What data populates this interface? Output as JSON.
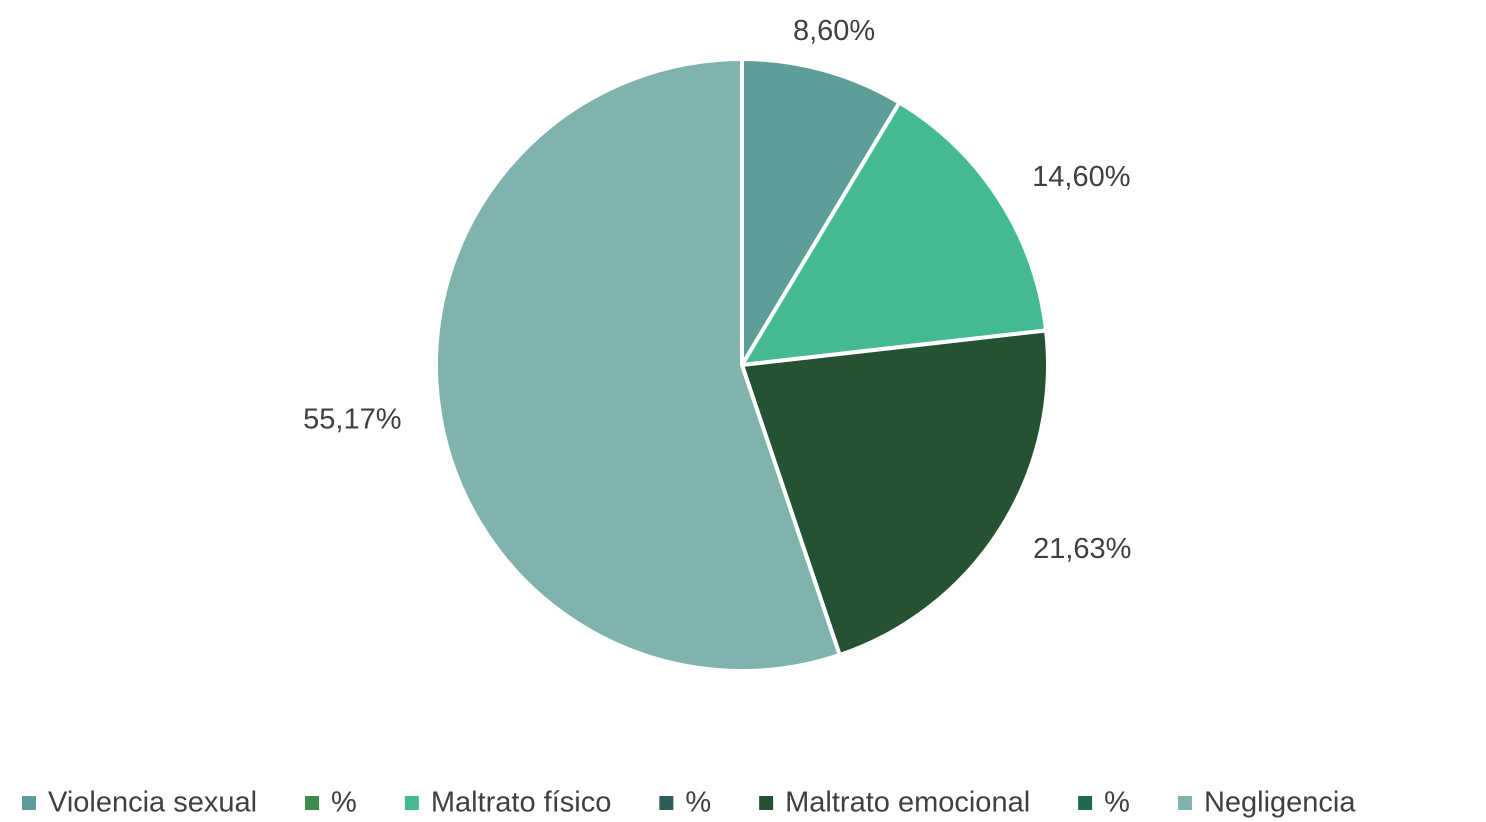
{
  "chart_data": {
    "type": "pie",
    "categories": [
      "Violencia sexual",
      "%",
      "Maltrato físico",
      "%",
      "Maltrato emocional",
      "%",
      "Negligencia"
    ],
    "values": [
      8.6,
      null,
      14.6,
      null,
      21.63,
      null,
      55.17
    ],
    "value_labels": [
      "8,60%",
      null,
      "14,60%",
      null,
      "21,63%",
      null,
      "55,17%"
    ],
    "colors": [
      "#5f9e98",
      "#3d8b4c",
      "#43b994",
      "#2f5d5a",
      "#245233",
      "#1f6b50",
      "#80b3ae"
    ],
    "legend": "bottom"
  }
}
